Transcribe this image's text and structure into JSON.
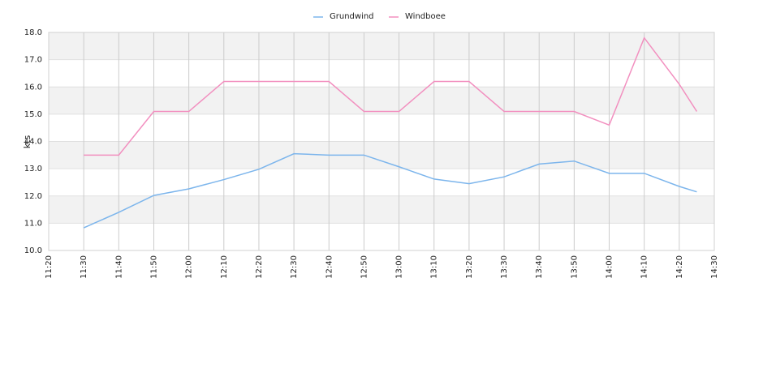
{
  "chart_data": {
    "type": "line",
    "y_label": "kts",
    "x": [
      "11:30",
      "11:40",
      "11:50",
      "12:00",
      "12:10",
      "12:20",
      "12:30",
      "12:40",
      "12:50",
      "13:00",
      "13:10",
      "13:20",
      "13:30",
      "13:40",
      "13:50",
      "14:00",
      "14:10",
      "14:20",
      "14:25"
    ],
    "series": [
      {
        "name": "Grundwind",
        "color": "#7cb5ec",
        "values": [
          10.83,
          11.4,
          12.02,
          12.26,
          12.6,
          12.98,
          13.55,
          13.5,
          13.5,
          13.07,
          12.62,
          12.45,
          12.7,
          13.17,
          13.28,
          12.83,
          12.83,
          12.35,
          12.15
        ]
      },
      {
        "name": "Windboee",
        "color": "#f28fbf",
        "values": [
          13.5,
          13.5,
          15.1,
          15.1,
          16.2,
          16.2,
          16.2,
          16.2,
          15.1,
          15.1,
          16.2,
          16.2,
          15.1,
          15.1,
          15.1,
          14.6,
          17.8,
          16.1,
          15.1
        ]
      }
    ],
    "xlim": [
      "11:20",
      "14:30"
    ],
    "xticks": [
      "11:20",
      "11:30",
      "11:40",
      "11:50",
      "12:00",
      "12:10",
      "12:20",
      "12:30",
      "12:40",
      "12:50",
      "13:00",
      "13:10",
      "13:20",
      "13:30",
      "13:40",
      "13:50",
      "14:00",
      "14:10",
      "14:20",
      "14:30"
    ],
    "ylim": [
      10,
      18
    ],
    "yticks": [
      {
        "value": 10,
        "label": "10.0"
      },
      {
        "value": 11,
        "label": "11.0"
      },
      {
        "value": 12,
        "label": "12.0"
      },
      {
        "value": 13,
        "label": "13.0"
      },
      {
        "value": 14,
        "label": "14.0"
      },
      {
        "value": 15,
        "label": "15.0"
      },
      {
        "value": 16,
        "label": "16.0"
      },
      {
        "value": 17,
        "label": "17.0"
      },
      {
        "value": 18,
        "label": "18.0"
      }
    ],
    "grid": true,
    "legend": "top"
  }
}
